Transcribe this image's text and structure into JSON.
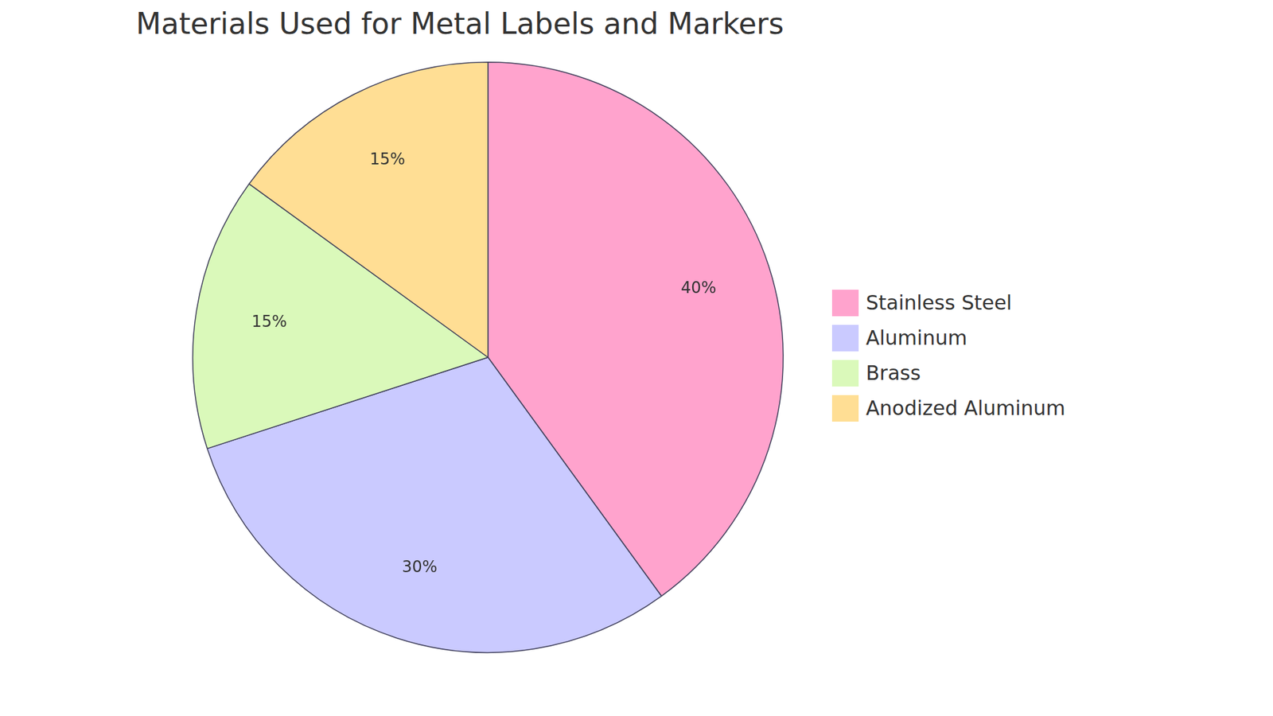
{
  "chart_data": {
    "type": "pie",
    "title": "Materials Used for Metal Labels and Markers",
    "categories": [
      "Stainless Steel",
      "Aluminum",
      "Brass",
      "Anodized Aluminum"
    ],
    "values": [
      40,
      30,
      15,
      15
    ],
    "value_labels": [
      "40%",
      "30%",
      "15%",
      "15%"
    ],
    "colors": [
      "#ffa3cd",
      "#cacaff",
      "#daf9ba",
      "#ffde94"
    ],
    "legend": "right",
    "data_labels": true
  }
}
